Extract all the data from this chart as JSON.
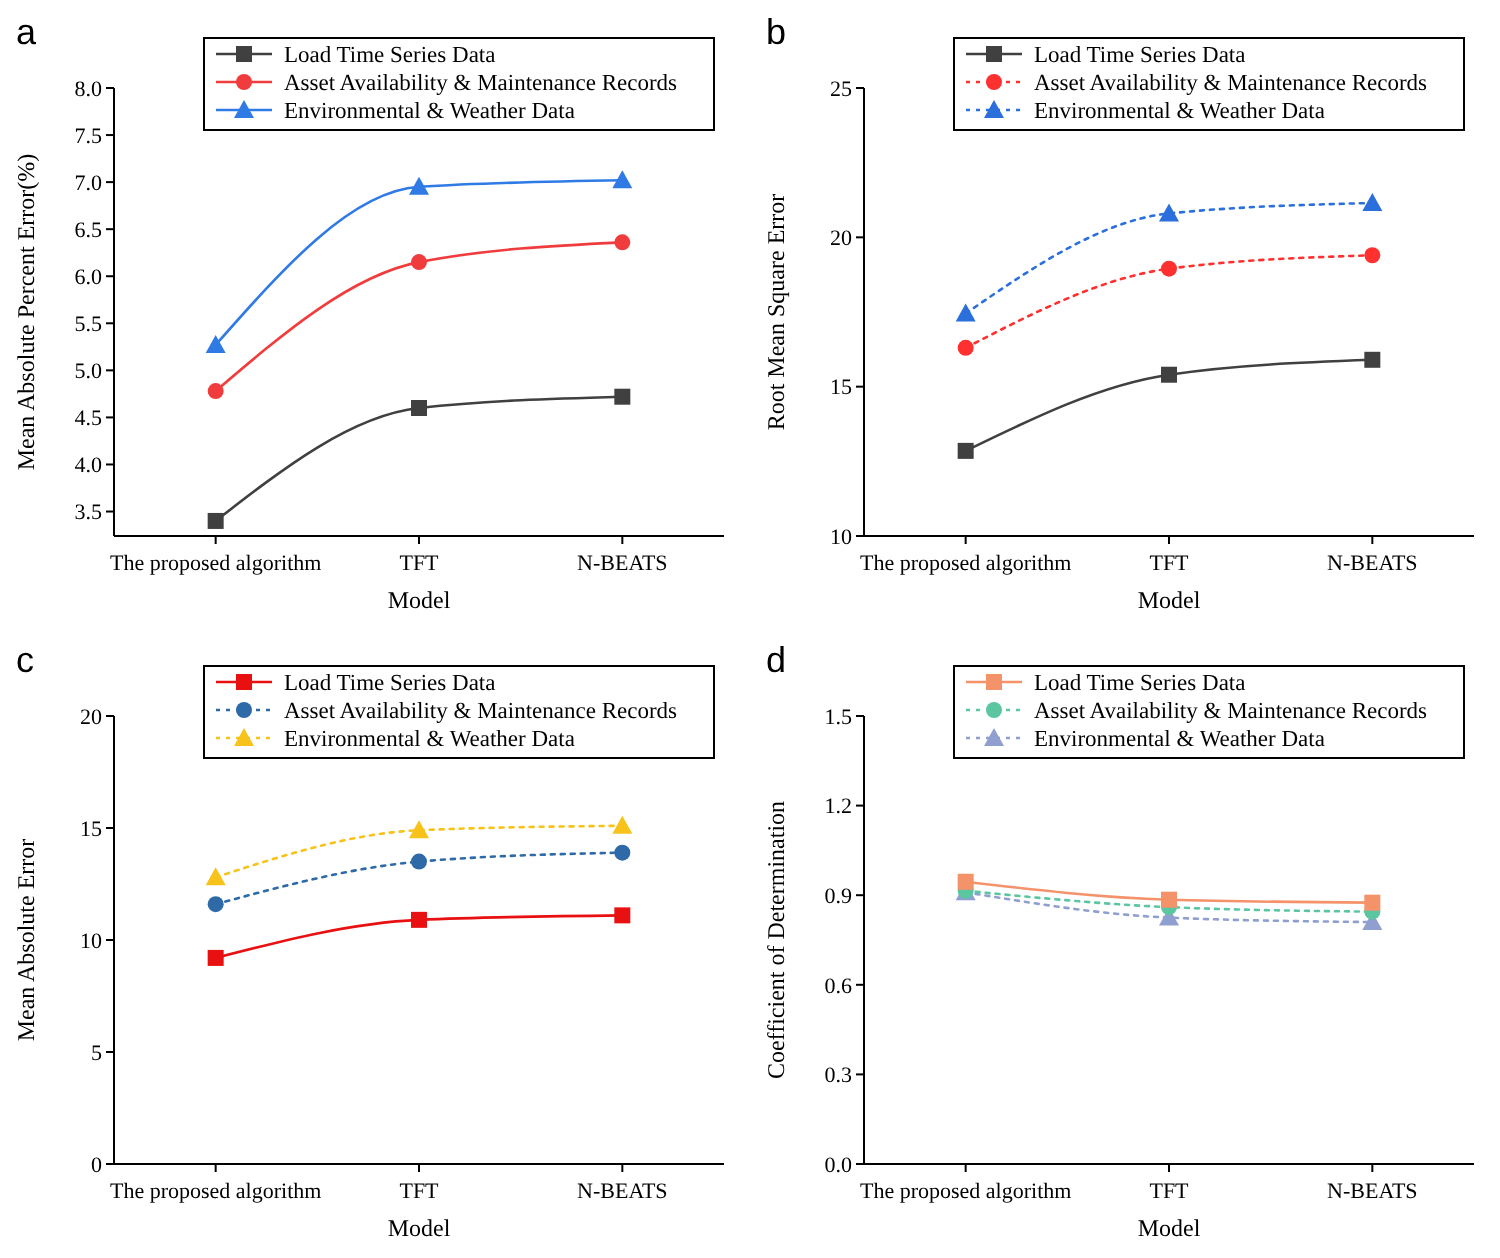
{
  "chart_data": [
    {
      "type": "line",
      "title": "a",
      "xlabel": "Model",
      "ylabel": "Mean Absolute Percent Error(%)",
      "categories": [
        "The proposed algorithm",
        "TFT",
        "N-BEATS"
      ],
      "ylim": [
        3.24,
        8.0
      ],
      "yticks": [
        {
          "value": 3.5,
          "label": "3.5"
        },
        {
          "value": 4.0,
          "label": "4.0"
        },
        {
          "value": 4.5,
          "label": "4.5"
        },
        {
          "value": 5.0,
          "label": "5.0"
        },
        {
          "value": 5.5,
          "label": "5.5"
        },
        {
          "value": 6.0,
          "label": "6.0"
        },
        {
          "value": 6.5,
          "label": "6.5"
        },
        {
          "value": 7.0,
          "label": "7.0"
        },
        {
          "value": 7.5,
          "label": "7.5"
        },
        {
          "value": 8.0,
          "label": "8.0"
        }
      ],
      "legend": "top",
      "grid": false,
      "series": [
        {
          "name": "Load Time Series Data",
          "color": "#404040",
          "values": [
            3.4,
            4.6,
            4.72
          ],
          "marker": "square",
          "line_style": "solid"
        },
        {
          "name": "Asset Availability & Maintenance Records",
          "color": "#f03c3c",
          "values": [
            4.78,
            6.15,
            6.36
          ],
          "marker": "circle",
          "line_style": "solid"
        },
        {
          "name": "Environmental & Weather Data",
          "color": "#2f7ae5",
          "values": [
            5.27,
            6.95,
            7.02
          ],
          "marker": "triangle",
          "line_style": "solid"
        }
      ]
    },
    {
      "type": "line",
      "title": "b",
      "xlabel": "Model",
      "ylabel": "Root Mean Square Error",
      "categories": [
        "The proposed algorithm",
        "TFT",
        "N-BEATS"
      ],
      "ylim": [
        10,
        25
      ],
      "yticks": [
        10,
        15,
        20,
        25
      ],
      "legend": "top",
      "grid": false,
      "series": [
        {
          "name": "Load Time Series Data",
          "color": "#404040",
          "values": [
            12.85,
            15.4,
            15.9
          ],
          "marker": "square",
          "line_style": "solid"
        },
        {
          "name": "Asset Availability & Maintenance Records",
          "color": "#ff3030",
          "values": [
            16.3,
            18.95,
            19.4
          ],
          "marker": "circle",
          "line_style": "dotted"
        },
        {
          "name": "Environmental & Weather Data",
          "color": "#2a6fdc",
          "values": [
            17.45,
            20.8,
            21.15
          ],
          "marker": "triangle",
          "line_style": "dotted"
        }
      ]
    },
    {
      "type": "line",
      "title": "c",
      "xlabel": "Model",
      "ylabel": "Mean Absolute Error",
      "categories": [
        "The proposed algorithm",
        "TFT",
        "N-BEATS"
      ],
      "ylim": [
        0,
        20
      ],
      "yticks": [
        0,
        5,
        10,
        15,
        20
      ],
      "legend": "top",
      "grid": false,
      "series": [
        {
          "name": "Load Time Series Data",
          "color": "#e81010",
          "values": [
            9.2,
            10.9,
            11.1
          ],
          "marker": "square",
          "line_style": "solid"
        },
        {
          "name": "Asset Availability & Maintenance Records",
          "color": "#2e6aa8",
          "values": [
            11.6,
            13.5,
            13.9
          ],
          "marker": "circle",
          "line_style": "dotted"
        },
        {
          "name": "Environmental & Weather Data",
          "color": "#f7c21a",
          "values": [
            12.8,
            14.9,
            15.1
          ],
          "marker": "triangle",
          "line_style": "dotted"
        }
      ]
    },
    {
      "type": "line",
      "title": "d",
      "xlabel": "Model",
      "ylabel": "Coefficient of Determination",
      "categories": [
        "The proposed algorithm",
        "TFT",
        "N-BEATS"
      ],
      "ylim": [
        0,
        1.5
      ],
      "yticks": [
        {
          "value": 0,
          "label": "0.0"
        },
        {
          "value": 0.3,
          "label": "0.3"
        },
        {
          "value": 0.6,
          "label": "0.6"
        },
        {
          "value": 0.9,
          "label": "0.9"
        },
        {
          "value": 1.2,
          "label": "1.2"
        },
        {
          "value": 1.5,
          "label": "1.5"
        }
      ],
      "legend": "top",
      "grid": false,
      "series": [
        {
          "name": "Load Time Series Data",
          "color": "#f4926a",
          "values": [
            0.945,
            0.885,
            0.875
          ],
          "marker": "square",
          "line_style": "solid"
        },
        {
          "name": "Asset Availability & Maintenance Records",
          "color": "#5cc6a0",
          "values": [
            0.915,
            0.86,
            0.845
          ],
          "marker": "circle",
          "line_style": "dotted"
        },
        {
          "name": "Environmental & Weather Data",
          "color": "#8f9fd0",
          "values": [
            0.91,
            0.825,
            0.81
          ],
          "marker": "triangle",
          "line_style": "dotted"
        }
      ]
    }
  ]
}
